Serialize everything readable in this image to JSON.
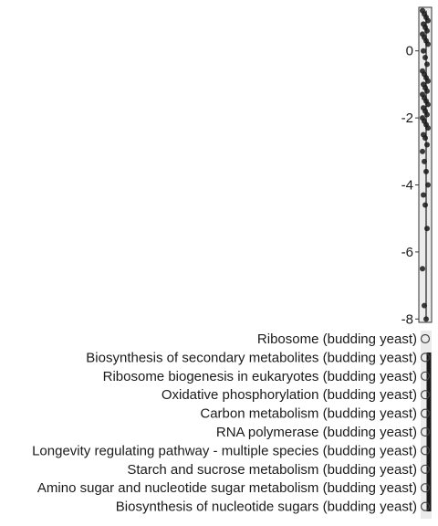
{
  "chart_data": {
    "type": "scatter",
    "title": "",
    "xlabel": "",
    "ylabel": "",
    "ylim": [
      -8.1,
      1.3
    ],
    "y_ticks": [
      "0",
      "-2",
      "-4",
      "-6",
      "-8"
    ],
    "y_tick_values": [
      0,
      -2,
      -4,
      -6,
      -8
    ],
    "grid": false,
    "legend": "none",
    "panel_fill": "#ebebeb",
    "point_color": "#1a1a1a",
    "terms": [
      "Ribosome (budding yeast)",
      "Biosynthesis of secondary metabolites (budding yeast)",
      "Ribosome biogenesis in eukaryotes (budding yeast)",
      "Oxidative phosphorylation (budding yeast)",
      "Carbon metabolism (budding yeast)",
      "RNA polymerase (budding yeast)",
      "Longevity regulating pathway - multiple species (budding yeast)",
      "Starch and sucrose metabolism (budding yeast)",
      "Amino sugar and nucleotide sugar metabolism (budding yeast)",
      "Biosynthesis of nucleotide sugars (budding yeast)"
    ],
    "points_y": [
      1.2,
      1.1,
      1.0,
      0.9,
      0.8,
      0.7,
      0.6,
      0.5,
      0.4,
      0.3,
      0.2,
      0.0,
      -0.2,
      -0.4,
      -0.6,
      -0.7,
      -0.8,
      -0.9,
      -1.0,
      -1.1,
      -1.2,
      -1.3,
      -1.4,
      -1.5,
      -1.6,
      -1.7,
      -1.8,
      -1.9,
      -2.0,
      -2.1,
      -2.2,
      -2.3,
      -2.5,
      -2.6,
      -2.8,
      -3.0,
      -3.3,
      -3.6,
      -4.0,
      -4.3,
      -4.6,
      -5.3,
      -6.5,
      -7.6,
      -8.0
    ]
  }
}
